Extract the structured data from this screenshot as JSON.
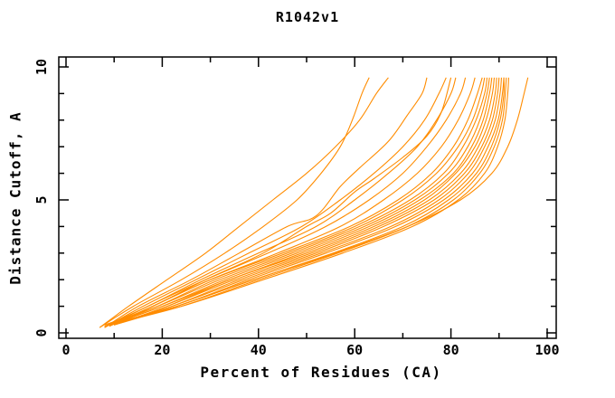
{
  "chart_data": {
    "type": "line",
    "title": "R1042v1",
    "xlabel": "Percent of Residues (CA)",
    "ylabel": "Distance Cutoff, A",
    "xlim": [
      0,
      100
    ],
    "ylim": [
      0,
      10
    ],
    "x_major_ticks": [
      0,
      20,
      40,
      60,
      80,
      100
    ],
    "x_minor_tick_step": 10,
    "y_major_ticks": [
      0,
      5,
      10
    ],
    "y_minor_tick_step": 1,
    "grid": false,
    "legend": "none",
    "ticks_direction": "inward-all-four-sides",
    "line_color": "#FF8C00",
    "axis_color": "#000000",
    "background_color": "#FFFFFF",
    "series": [
      {
        "points": [
          [
            7,
            0.2
          ],
          [
            14,
            1
          ],
          [
            24,
            2
          ],
          [
            33,
            3
          ],
          [
            41,
            4
          ],
          [
            48,
            5
          ],
          [
            53,
            6
          ],
          [
            57,
            7
          ],
          [
            59.5,
            8
          ],
          [
            61.5,
            9
          ],
          [
            63,
            9.6
          ]
        ]
      },
      {
        "points": [
          [
            7,
            0.2
          ],
          [
            13,
            1
          ],
          [
            21,
            2
          ],
          [
            29,
            3
          ],
          [
            36,
            4
          ],
          [
            43,
            5
          ],
          [
            50,
            6
          ],
          [
            56,
            7
          ],
          [
            61,
            8
          ],
          [
            64.5,
            9
          ],
          [
            67,
            9.6
          ]
        ]
      },
      {
        "points": [
          [
            8,
            0.2
          ],
          [
            15,
            1
          ],
          [
            26,
            2
          ],
          [
            36,
            3
          ],
          [
            46,
            4
          ],
          [
            52,
            4.4
          ],
          [
            57,
            5.5
          ],
          [
            61,
            6.2
          ],
          [
            67,
            7.2
          ],
          [
            71,
            8.2
          ],
          [
            74,
            9
          ],
          [
            75,
            9.6
          ]
        ]
      },
      {
        "points": [
          [
            8,
            0.2
          ],
          [
            16,
            1
          ],
          [
            27,
            2
          ],
          [
            38,
            3
          ],
          [
            49,
            4
          ],
          [
            57,
            5
          ],
          [
            64,
            6
          ],
          [
            70,
            7
          ],
          [
            74.5,
            8
          ],
          [
            77.5,
            9
          ],
          [
            79,
            9.6
          ]
        ]
      },
      {
        "points": [
          [
            9,
            0.3
          ],
          [
            18,
            1
          ],
          [
            29,
            2
          ],
          [
            41,
            3
          ],
          [
            50,
            4
          ],
          [
            55,
            4.5
          ],
          [
            60,
            5.3
          ],
          [
            64,
            5.8
          ],
          [
            70,
            6.6
          ],
          [
            75,
            7.4
          ],
          [
            78,
            8.3
          ],
          [
            80,
            9.6
          ]
        ]
      },
      {
        "points": [
          [
            8,
            0.25
          ],
          [
            17,
            1
          ],
          [
            28,
            2
          ],
          [
            40,
            3
          ],
          [
            52,
            4
          ],
          [
            60,
            5
          ],
          [
            67,
            6
          ],
          [
            73,
            7
          ],
          [
            77,
            8
          ],
          [
            80,
            9
          ],
          [
            81,
            9.6
          ]
        ]
      },
      {
        "points": [
          [
            9,
            0.25
          ],
          [
            17,
            1
          ],
          [
            29,
            2
          ],
          [
            42,
            3
          ],
          [
            54,
            4
          ],
          [
            63,
            5
          ],
          [
            70,
            6
          ],
          [
            75,
            7
          ],
          [
            79,
            8
          ],
          [
            82,
            9
          ],
          [
            83,
            9.6
          ]
        ]
      },
      {
        "points": [
          [
            9,
            0.25
          ],
          [
            18,
            1
          ],
          [
            30,
            2
          ],
          [
            44,
            3
          ],
          [
            57,
            4
          ],
          [
            66,
            5
          ],
          [
            73,
            6
          ],
          [
            78,
            7
          ],
          [
            81.5,
            8
          ],
          [
            84,
            9
          ],
          [
            85,
            9.6
          ]
        ]
      },
      {
        "points": [
          [
            9,
            0.25
          ],
          [
            18,
            1
          ],
          [
            30,
            2
          ],
          [
            45,
            3
          ],
          [
            59,
            4
          ],
          [
            69,
            5
          ],
          [
            76,
            6
          ],
          [
            80.5,
            7
          ],
          [
            83.5,
            8
          ],
          [
            85.5,
            9
          ],
          [
            86.5,
            9.6
          ]
        ]
      },
      {
        "points": [
          [
            9,
            0.3
          ],
          [
            19,
            1
          ],
          [
            31,
            2
          ],
          [
            46,
            3
          ],
          [
            60,
            4
          ],
          [
            70,
            5
          ],
          [
            77,
            6
          ],
          [
            81.5,
            7
          ],
          [
            84.5,
            8
          ],
          [
            86.3,
            9
          ],
          [
            87,
            9.6
          ]
        ]
      },
      {
        "points": [
          [
            8,
            0.3
          ],
          [
            19,
            1
          ],
          [
            32,
            2
          ],
          [
            47,
            3
          ],
          [
            61,
            4
          ],
          [
            71.5,
            5
          ],
          [
            78.5,
            6
          ],
          [
            82.5,
            7
          ],
          [
            85.2,
            8
          ],
          [
            87,
            9
          ],
          [
            87.5,
            9.6
          ]
        ]
      },
      {
        "points": [
          [
            9,
            0.3
          ],
          [
            20,
            1
          ],
          [
            33,
            2
          ],
          [
            48,
            3
          ],
          [
            62,
            4
          ],
          [
            72.5,
            5
          ],
          [
            79.5,
            6
          ],
          [
            83.5,
            7
          ],
          [
            86,
            8
          ],
          [
            87.5,
            9
          ],
          [
            88,
            9.6
          ]
        ]
      },
      {
        "points": [
          [
            9,
            0.3
          ],
          [
            20,
            1
          ],
          [
            34,
            2
          ],
          [
            49,
            3
          ],
          [
            63,
            4
          ],
          [
            73.5,
            5
          ],
          [
            80.5,
            6
          ],
          [
            84.3,
            7
          ],
          [
            86.7,
            8
          ],
          [
            88,
            9
          ],
          [
            88.5,
            9.6
          ]
        ]
      },
      {
        "points": [
          [
            10,
            0.3
          ],
          [
            21,
            1
          ],
          [
            34,
            2
          ],
          [
            50,
            3
          ],
          [
            64,
            4
          ],
          [
            74.5,
            5
          ],
          [
            81,
            6
          ],
          [
            85,
            7
          ],
          [
            87.3,
            8
          ],
          [
            88.6,
            9
          ],
          [
            89,
            9.6
          ]
        ]
      },
      {
        "points": [
          [
            10,
            0.3
          ],
          [
            21,
            1
          ],
          [
            35,
            2
          ],
          [
            51,
            3
          ],
          [
            65,
            4
          ],
          [
            75.5,
            5
          ],
          [
            82,
            6
          ],
          [
            85.7,
            7
          ],
          [
            88,
            8
          ],
          [
            89.2,
            9
          ],
          [
            89.5,
            9.6
          ]
        ]
      },
      {
        "points": [
          [
            10,
            0.3
          ],
          [
            22,
            1
          ],
          [
            36,
            2
          ],
          [
            52,
            3
          ],
          [
            66,
            4
          ],
          [
            76.5,
            5
          ],
          [
            82.8,
            6
          ],
          [
            86.4,
            7
          ],
          [
            88.6,
            8
          ],
          [
            89.7,
            9
          ],
          [
            90,
            9.6
          ]
        ]
      },
      {
        "points": [
          [
            9,
            0.3
          ],
          [
            22,
            1
          ],
          [
            37,
            2
          ],
          [
            53,
            3
          ],
          [
            67.5,
            4
          ],
          [
            77.5,
            5
          ],
          [
            83.6,
            6
          ],
          [
            87,
            7
          ],
          [
            89.2,
            8
          ],
          [
            90.2,
            9
          ],
          [
            90.5,
            9.6
          ]
        ]
      },
      {
        "points": [
          [
            10,
            0.35
          ],
          [
            23,
            1
          ],
          [
            38,
            2
          ],
          [
            54,
            3
          ],
          [
            68.5,
            4
          ],
          [
            78.5,
            5
          ],
          [
            84.5,
            6
          ],
          [
            87.7,
            7
          ],
          [
            89.8,
            8
          ],
          [
            90.7,
            9
          ],
          [
            91,
            9.6
          ]
        ]
      },
      {
        "points": [
          [
            10,
            0.35
          ],
          [
            23,
            1
          ],
          [
            39,
            2
          ],
          [
            55.5,
            3
          ],
          [
            70,
            4
          ],
          [
            79.5,
            5
          ],
          [
            85.3,
            6
          ],
          [
            88.4,
            7
          ],
          [
            90.2,
            8
          ],
          [
            91,
            9
          ],
          [
            91,
            9.6
          ]
        ]
      },
      {
        "points": [
          [
            10,
            0.35
          ],
          [
            24,
            1
          ],
          [
            40,
            2
          ],
          [
            56.5,
            3
          ],
          [
            71,
            4
          ],
          [
            80.5,
            5
          ],
          [
            86,
            6
          ],
          [
            89,
            7
          ],
          [
            90.7,
            8
          ],
          [
            91.3,
            9
          ],
          [
            91.5,
            9.6
          ]
        ]
      },
      {
        "points": [
          [
            10,
            0.4
          ],
          [
            24,
            1
          ],
          [
            41,
            2
          ],
          [
            57.5,
            3
          ],
          [
            72,
            4
          ],
          [
            81.5,
            5
          ],
          [
            87,
            6
          ],
          [
            89.7,
            7
          ],
          [
            91.2,
            8
          ],
          [
            91.8,
            9
          ],
          [
            92,
            9.6
          ]
        ]
      },
      {
        "points": [
          [
            10,
            0.3
          ],
          [
            23,
            1
          ],
          [
            39,
            2
          ],
          [
            56,
            3
          ],
          [
            71,
            4
          ],
          [
            82,
            5
          ],
          [
            88.5,
            6
          ],
          [
            91.8,
            7
          ],
          [
            93.8,
            8
          ],
          [
            95.2,
            9
          ],
          [
            96,
            9.6
          ]
        ]
      }
    ]
  }
}
